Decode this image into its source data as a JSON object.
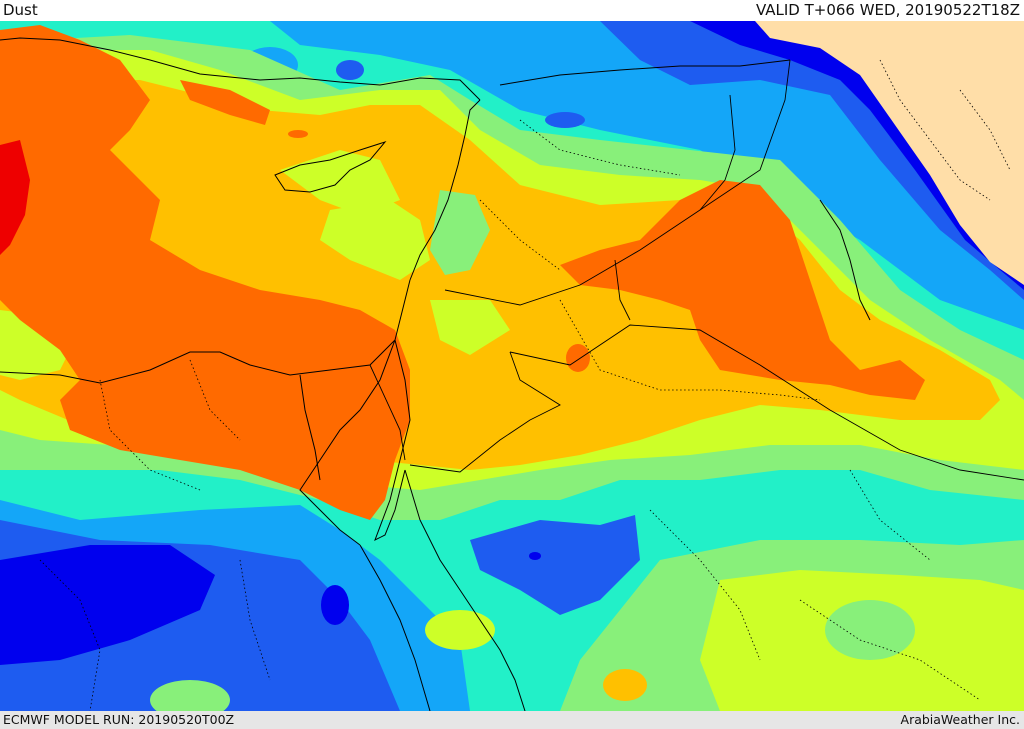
{
  "header": {
    "title": "Dust",
    "valid": "VALID T+066 WED, 20190522T18Z"
  },
  "footer": {
    "model_run": "ECMWF MODEL RUN: 20190520T00Z",
    "credit": "ArabiaWeather Inc."
  },
  "map": {
    "field": "dust concentration",
    "palette": {
      "navy": "#0000ee",
      "blue": "#1e5cf0",
      "lightblue": "#14a6f8",
      "aqua": "#22f0c8",
      "lightgreen": "#88f07a",
      "lime": "#cdff28",
      "yellow": "#ffc000",
      "orange": "#ff6a00",
      "red": "#ee0000",
      "land_nodata": "#ffdea8"
    }
  }
}
